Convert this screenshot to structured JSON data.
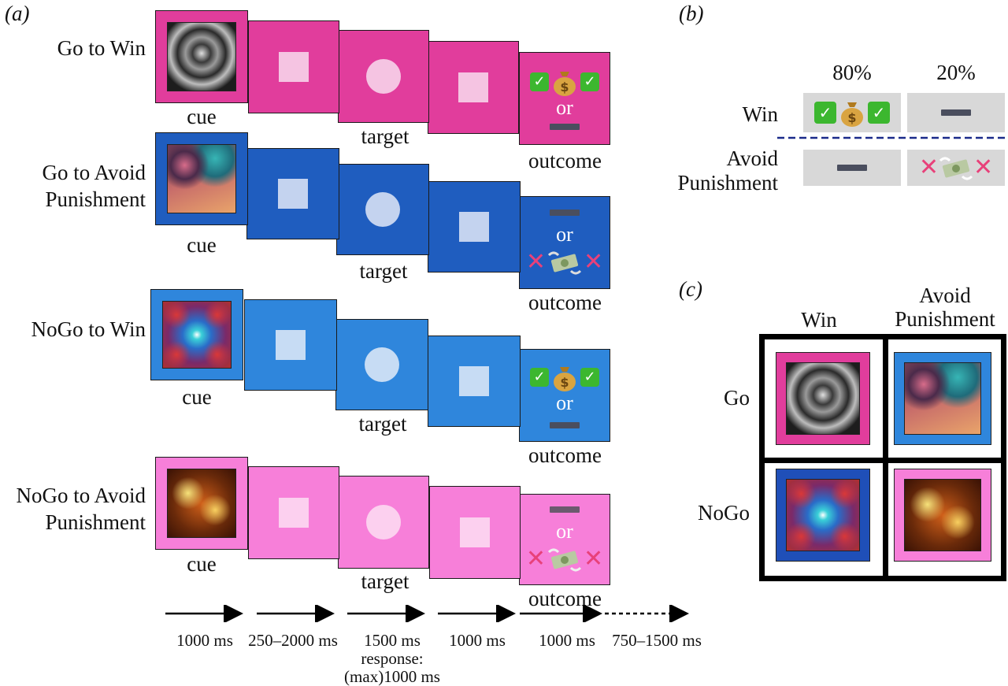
{
  "panel_a": {
    "letter": "(a)",
    "rows": [
      {
        "label_lines": [
          "Go to Win"
        ],
        "cue": "cue",
        "target": "target",
        "outcome": "outcome"
      },
      {
        "label_lines": [
          "Go to Avoid",
          "Punishment"
        ],
        "cue": "cue",
        "target": "target",
        "outcome": "outcome"
      },
      {
        "label_lines": [
          "NoGo to Win"
        ],
        "cue": "cue",
        "target": "target",
        "outcome": "outcome"
      },
      {
        "label_lines": [
          "NoGo to Avoid",
          "Punishment"
        ],
        "cue": "cue",
        "target": "target",
        "outcome": "outcome"
      }
    ],
    "or_text": "or",
    "colors": {
      "go_win": "#e13d9c",
      "go_avoid": "#1f5dbf",
      "nogo_win": "#2f86dc",
      "nogo_avoid": "#f77fd9"
    },
    "timeline": [
      {
        "lines": [
          "1000 ms"
        ]
      },
      {
        "lines": [
          "250–2000 ms"
        ]
      },
      {
        "lines": [
          "1500 ms",
          "response:",
          "(max)1000 ms"
        ]
      },
      {
        "lines": [
          "1000 ms"
        ]
      },
      {
        "lines": [
          "1000 ms"
        ]
      },
      {
        "lines": [
          "750–1500 ms"
        ]
      }
    ]
  },
  "panel_b": {
    "letter": "(b)",
    "col_headers": [
      "80%",
      "20%"
    ],
    "row_labels": [
      [
        "Win"
      ],
      [
        "Avoid",
        "Punishment"
      ]
    ]
  },
  "panel_c": {
    "letter": "(c)",
    "col_headers": [
      [
        "Win"
      ],
      [
        "Avoid",
        "Punishment"
      ]
    ],
    "row_labels": [
      "Go",
      "NoGo"
    ]
  }
}
